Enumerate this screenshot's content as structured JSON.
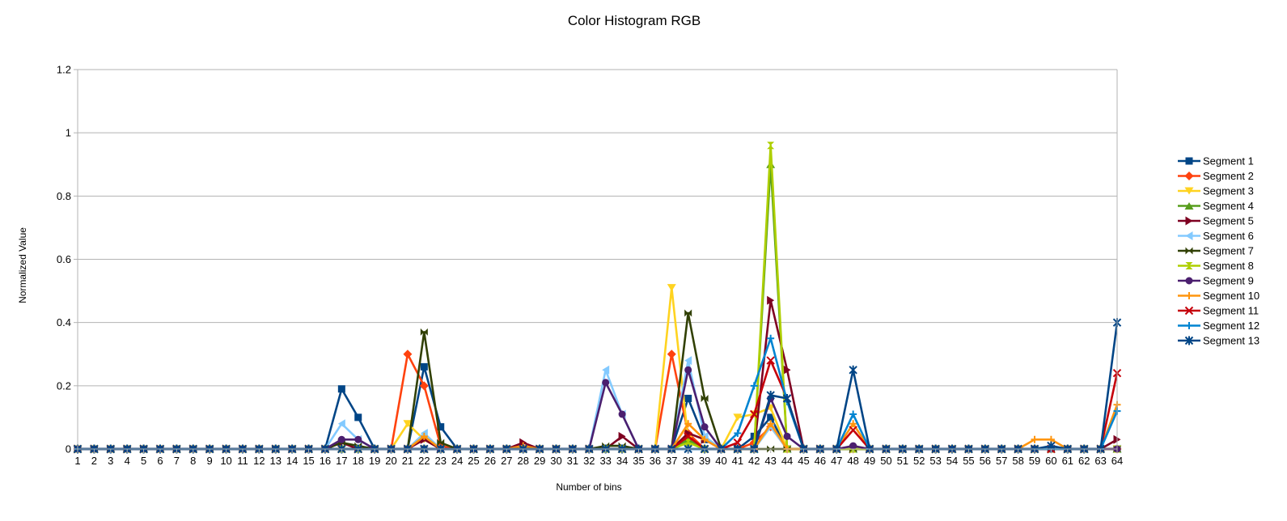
{
  "chart_data": {
    "type": "line",
    "title": "Color Histogram RGB",
    "xlabel": "Number of bins",
    "ylabel": "Normalized Value",
    "ylim": [
      0,
      1.2
    ],
    "yticks": [
      "0",
      "0.2",
      "0.4",
      "0.6",
      "0.8",
      "1",
      "1.2"
    ],
    "ytick_values": [
      0,
      0.2,
      0.4,
      0.6,
      0.8,
      1.0,
      1.2
    ],
    "grid": true,
    "legend_position": "right",
    "categories": [
      "1",
      "2",
      "3",
      "4",
      "5",
      "6",
      "7",
      "8",
      "9",
      "10",
      "11",
      "12",
      "13",
      "14",
      "15",
      "16",
      "17",
      "18",
      "19",
      "20",
      "21",
      "22",
      "23",
      "24",
      "25",
      "26",
      "27",
      "28",
      "29",
      "30",
      "31",
      "32",
      "33",
      "34",
      "35",
      "36",
      "37",
      "38",
      "39",
      "40",
      "41",
      "42",
      "43",
      "44",
      "45",
      "46",
      "47",
      "48",
      "49",
      "50",
      "51",
      "52",
      "53",
      "54",
      "55",
      "56",
      "57",
      "58",
      "59",
      "60",
      "61",
      "62",
      "63",
      "64"
    ],
    "series": [
      {
        "name": "Segment 1",
        "color": "#004586",
        "marker": "square",
        "points": {
          "17": 0.19,
          "18": 0.1,
          "22": 0.26,
          "23": 0.07,
          "38": 0.16,
          "39": 0.03,
          "42": 0.04,
          "43": 0.1
        }
      },
      {
        "name": "Segment 2",
        "color": "#ff420e",
        "marker": "diamond",
        "points": {
          "21": 0.3,
          "22": 0.2,
          "23": 0.01,
          "37": 0.3,
          "38": 0.05,
          "42": 0.02,
          "43": 0.07
        }
      },
      {
        "name": "Segment 3",
        "color": "#ffd320",
        "marker": "triangle-down",
        "points": {
          "21": 0.08,
          "22": 0.03,
          "37": 0.51,
          "38": 0.03,
          "41": 0.1,
          "42": 0.11,
          "43": 0.13
        }
      },
      {
        "name": "Segment 4",
        "color": "#579d1c",
        "marker": "triangle-up",
        "points": {
          "38": 0.03,
          "43": 0.9
        }
      },
      {
        "name": "Segment 5",
        "color": "#7e0021",
        "marker": "triangle-right",
        "points": {
          "17": 0.02,
          "22": 0.03,
          "28": 0.02,
          "34": 0.04,
          "38": 0.05,
          "39": 0.03,
          "43": 0.47,
          "44": 0.25,
          "64": 0.03
        }
      },
      {
        "name": "Segment 6",
        "color": "#83caff",
        "marker": "triangle-left",
        "points": {
          "17": 0.08,
          "18": 0.03,
          "22": 0.05,
          "33": 0.25,
          "34": 0.11,
          "38": 0.28,
          "39": 0.04,
          "43": 0.07
        }
      },
      {
        "name": "Segment 7",
        "color": "#314004",
        "marker": "bowtie",
        "points": {
          "17": 0.02,
          "18": 0.01,
          "22": 0.37,
          "23": 0.02,
          "33": 0.01,
          "34": 0.01,
          "38": 0.43,
          "39": 0.16
        }
      },
      {
        "name": "Segment 8",
        "color": "#aecf00",
        "marker": "bowtie-v",
        "points": {
          "38": 0.02,
          "43": 0.96
        }
      },
      {
        "name": "Segment 9",
        "color": "#4b1f6f",
        "marker": "circle",
        "points": {
          "17": 0.03,
          "18": 0.03,
          "33": 0.21,
          "34": 0.11,
          "38": 0.25,
          "39": 0.07,
          "43": 0.16,
          "44": 0.04,
          "48": 0.01
        }
      },
      {
        "name": "Segment 10",
        "color": "#ff950e",
        "marker": "plus",
        "points": {
          "22": 0.04,
          "28": 0.01,
          "38": 0.08,
          "39": 0.03,
          "43": 0.08,
          "48": 0.08,
          "59": 0.03,
          "60": 0.03,
          "64": 0.14
        }
      },
      {
        "name": "Segment 11",
        "color": "#c5000b",
        "marker": "x",
        "points": {
          "38": 0.04,
          "41": 0.02,
          "42": 0.11,
          "43": 0.28,
          "44": 0.16,
          "48": 0.06,
          "64": 0.24
        }
      },
      {
        "name": "Segment 12",
        "color": "#0084d1",
        "marker": "plus",
        "points": {
          "41": 0.05,
          "42": 0.2,
          "43": 0.35,
          "44": 0.15,
          "48": 0.11,
          "64": 0.12
        }
      },
      {
        "name": "Segment 13",
        "color": "#004586",
        "marker": "asterisk",
        "points": {
          "43": 0.17,
          "44": 0.16,
          "48": 0.25,
          "60": 0.01,
          "64": 0.4
        }
      }
    ]
  }
}
